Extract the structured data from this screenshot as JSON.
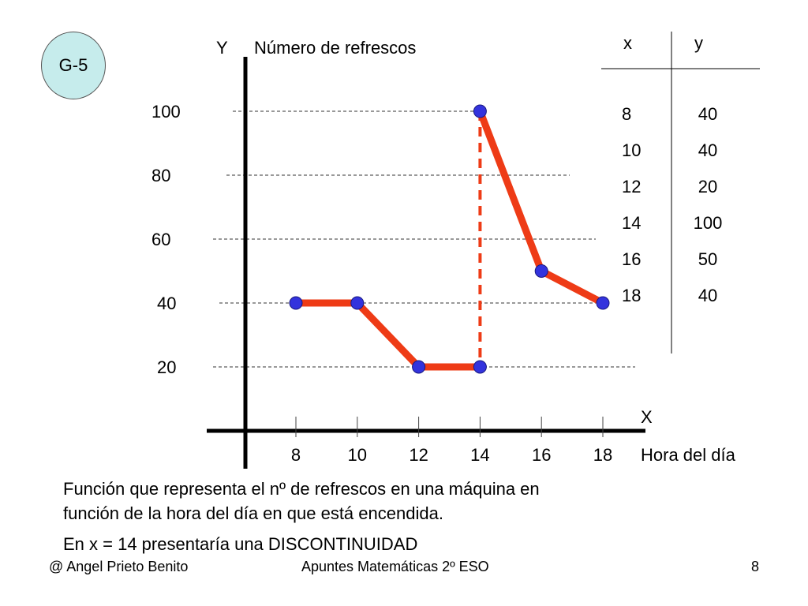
{
  "slide": {
    "badge": "G-5",
    "caption_lines": [
      "Función que representa el nº de refrescos en una máquina en",
      "función de la hora del día en que está encendida.",
      "En x = 14 presentaría una DISCONTINUIDAD"
    ],
    "footer": {
      "left": "@ Angel Prieto Benito",
      "center": "Apuntes Matemáticas 2º ESO",
      "page": "8"
    },
    "table": {
      "header_x": "x",
      "header_y": "y",
      "rows": [
        {
          "x": "8",
          "y": "40"
        },
        {
          "x": "10",
          "y": "40"
        },
        {
          "x": "12",
          "y": "20"
        },
        {
          "x": "14",
          "y": "100"
        },
        {
          "x": "16",
          "y": "50"
        },
        {
          "x": "18",
          "y": "40"
        }
      ]
    }
  },
  "chart_data": {
    "type": "line",
    "ylabel_letter": "Y",
    "ylabel": "Número de refrescos",
    "xlabel_letter": "X",
    "xlabel": "Hora del día",
    "x_ticks": [
      8,
      10,
      12,
      14,
      16,
      18
    ],
    "y_ticks": [
      20,
      40,
      60,
      80,
      100
    ],
    "segments": [
      {
        "points": [
          [
            8,
            40
          ],
          [
            10,
            40
          ],
          [
            12,
            20
          ],
          [
            14,
            20
          ]
        ]
      },
      {
        "points": [
          [
            14,
            100
          ],
          [
            16,
            50
          ],
          [
            18,
            40
          ]
        ]
      }
    ],
    "discontinuity_x": 14,
    "line_color": "#ee3b16",
    "marker_color": "#3333dd",
    "gridlines": "dashed horizontal"
  }
}
